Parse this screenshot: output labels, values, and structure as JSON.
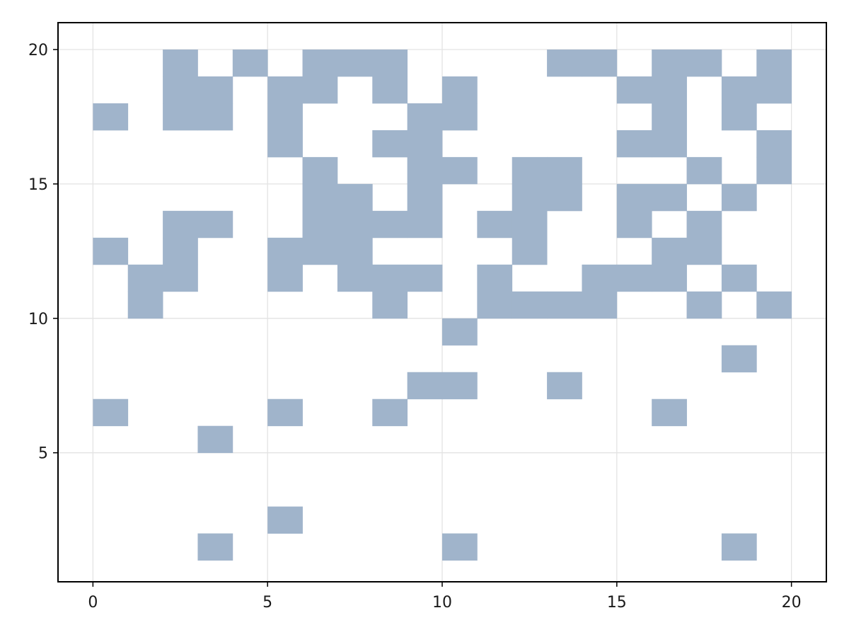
{
  "chart_data": {
    "type": "heatmap",
    "title": "",
    "xlabel": "",
    "ylabel": "",
    "xlim": [
      -1,
      21
    ],
    "ylim": [
      0.2,
      21
    ],
    "x_ticks": [
      0,
      5,
      10,
      15,
      20
    ],
    "y_ticks": [
      5,
      10,
      15,
      20
    ],
    "x_tick_labels": [
      "0",
      "5",
      "10",
      "15",
      "20"
    ],
    "y_tick_labels": [
      "5",
      "10",
      "15",
      "20"
    ],
    "grid": true,
    "cell_width": 1,
    "cell_height": 1,
    "fill_color": "#a0b4cb",
    "cells": [
      [
        2,
        20
      ],
      [
        4,
        20
      ],
      [
        6,
        20
      ],
      [
        7,
        20
      ],
      [
        8,
        20
      ],
      [
        13,
        20
      ],
      [
        14,
        20
      ],
      [
        16,
        20
      ],
      [
        17,
        20
      ],
      [
        19,
        20
      ],
      [
        2,
        19
      ],
      [
        3,
        19
      ],
      [
        5,
        19
      ],
      [
        6,
        19
      ],
      [
        8,
        19
      ],
      [
        10,
        19
      ],
      [
        15,
        19
      ],
      [
        16,
        19
      ],
      [
        18,
        19
      ],
      [
        19,
        19
      ],
      [
        0,
        18
      ],
      [
        2,
        18
      ],
      [
        3,
        18
      ],
      [
        5,
        18
      ],
      [
        9,
        18
      ],
      [
        10,
        18
      ],
      [
        16,
        18
      ],
      [
        18,
        18
      ],
      [
        5,
        17
      ],
      [
        8,
        17
      ],
      [
        9,
        17
      ],
      [
        15,
        17
      ],
      [
        16,
        17
      ],
      [
        19,
        17
      ],
      [
        6,
        16
      ],
      [
        9,
        16
      ],
      [
        10,
        16
      ],
      [
        12,
        16
      ],
      [
        13,
        16
      ],
      [
        17,
        16
      ],
      [
        19,
        16
      ],
      [
        6,
        15
      ],
      [
        7,
        15
      ],
      [
        9,
        15
      ],
      [
        12,
        15
      ],
      [
        13,
        15
      ],
      [
        15,
        15
      ],
      [
        16,
        15
      ],
      [
        18,
        15
      ],
      [
        2,
        14
      ],
      [
        3,
        14
      ],
      [
        6,
        14
      ],
      [
        7,
        14
      ],
      [
        8,
        14
      ],
      [
        9,
        14
      ],
      [
        11,
        14
      ],
      [
        12,
        14
      ],
      [
        15,
        14
      ],
      [
        17,
        14
      ],
      [
        0,
        13
      ],
      [
        2,
        13
      ],
      [
        5,
        13
      ],
      [
        6,
        13
      ],
      [
        7,
        13
      ],
      [
        12,
        13
      ],
      [
        16,
        13
      ],
      [
        17,
        13
      ],
      [
        1,
        12
      ],
      [
        2,
        12
      ],
      [
        5,
        12
      ],
      [
        7,
        12
      ],
      [
        8,
        12
      ],
      [
        9,
        12
      ],
      [
        11,
        12
      ],
      [
        14,
        12
      ],
      [
        15,
        12
      ],
      [
        16,
        12
      ],
      [
        18,
        12
      ],
      [
        1,
        11
      ],
      [
        8,
        11
      ],
      [
        11,
        11
      ],
      [
        12,
        11
      ],
      [
        13,
        11
      ],
      [
        14,
        11
      ],
      [
        17,
        11
      ],
      [
        19,
        11
      ],
      [
        10,
        10
      ],
      [
        18,
        9
      ],
      [
        9,
        8
      ],
      [
        10,
        8
      ],
      [
        13,
        8
      ],
      [
        0,
        7
      ],
      [
        5,
        7
      ],
      [
        8,
        7
      ],
      [
        16,
        7
      ],
      [
        3,
        6
      ],
      [
        5,
        3
      ],
      [
        3,
        2
      ],
      [
        10,
        2
      ],
      [
        18,
        2
      ]
    ]
  }
}
